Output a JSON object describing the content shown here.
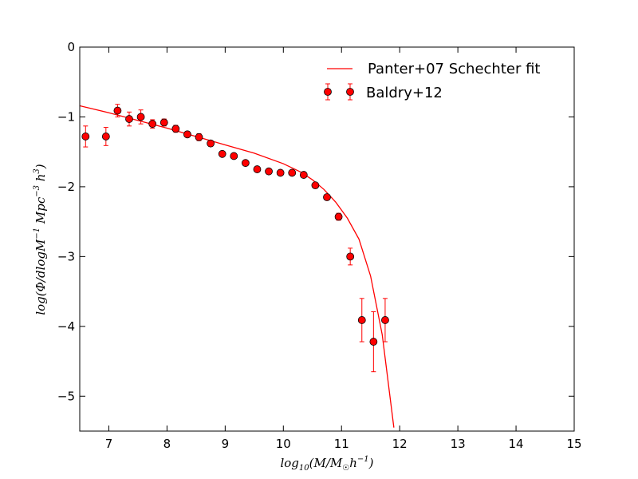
{
  "chart_data": {
    "type": "scatter",
    "xlabel": "log10(M/M☉h−1)",
    "ylabel": "log(Φ/dlogM−1 Mpc−3 h3)",
    "xlim": [
      6.5,
      15
    ],
    "ylim": [
      -5.5,
      0
    ],
    "x_ticks": [
      7,
      8,
      9,
      10,
      11,
      12,
      13,
      14,
      15
    ],
    "y_ticks": [
      0,
      -1,
      -2,
      -3,
      -4,
      -5
    ],
    "y_tick_labels": [
      "0",
      "−1",
      "−2",
      "−3",
      "−4",
      "−5"
    ],
    "grid": false,
    "legend_position": "top-right",
    "series": [
      {
        "name": "Panter+07 Schechter fit",
        "kind": "line",
        "color": "#ff0000",
        "x": [
          6.5,
          7.0,
          7.5,
          8.0,
          8.5,
          9.0,
          9.5,
          10.0,
          10.3,
          10.5,
          10.7,
          10.9,
          11.1,
          11.3,
          11.5,
          11.7,
          11.9
        ],
        "y": [
          -0.84,
          -0.94,
          -1.05,
          -1.16,
          -1.28,
          -1.4,
          -1.52,
          -1.67,
          -1.79,
          -1.9,
          -2.04,
          -2.22,
          -2.45,
          -2.75,
          -3.28,
          -4.12,
          -5.45
        ]
      },
      {
        "name": "Baldry+12",
        "kind": "points_errorbars",
        "color": "#ff0000",
        "x": [
          6.6,
          6.95,
          7.15,
          7.35,
          7.55,
          7.75,
          7.95,
          8.15,
          8.35,
          8.55,
          8.75,
          8.95,
          9.15,
          9.35,
          9.55,
          9.75,
          9.95,
          10.15,
          10.35,
          10.55,
          10.75,
          10.95,
          11.15,
          11.35,
          11.55,
          11.75
        ],
        "y": [
          -1.28,
          -1.28,
          -0.91,
          -1.03,
          -1.0,
          -1.1,
          -1.08,
          -1.17,
          -1.25,
          -1.29,
          -1.38,
          -1.53,
          -1.56,
          -1.66,
          -1.75,
          -1.78,
          -1.8,
          -1.8,
          -1.83,
          -1.98,
          -2.15,
          -2.43,
          -3.0,
          -3.91,
          -4.22,
          -3.91
        ],
        "err": [
          0.15,
          0.13,
          0.09,
          0.1,
          0.1,
          0.06,
          0.05,
          0.05,
          0.04,
          0.05,
          0.04,
          0.03,
          0.03,
          0.03,
          0.03,
          0.03,
          0.03,
          0.03,
          0.03,
          0.03,
          0.04,
          0.05,
          0.12,
          0.31,
          0.43,
          0.31
        ]
      }
    ]
  }
}
